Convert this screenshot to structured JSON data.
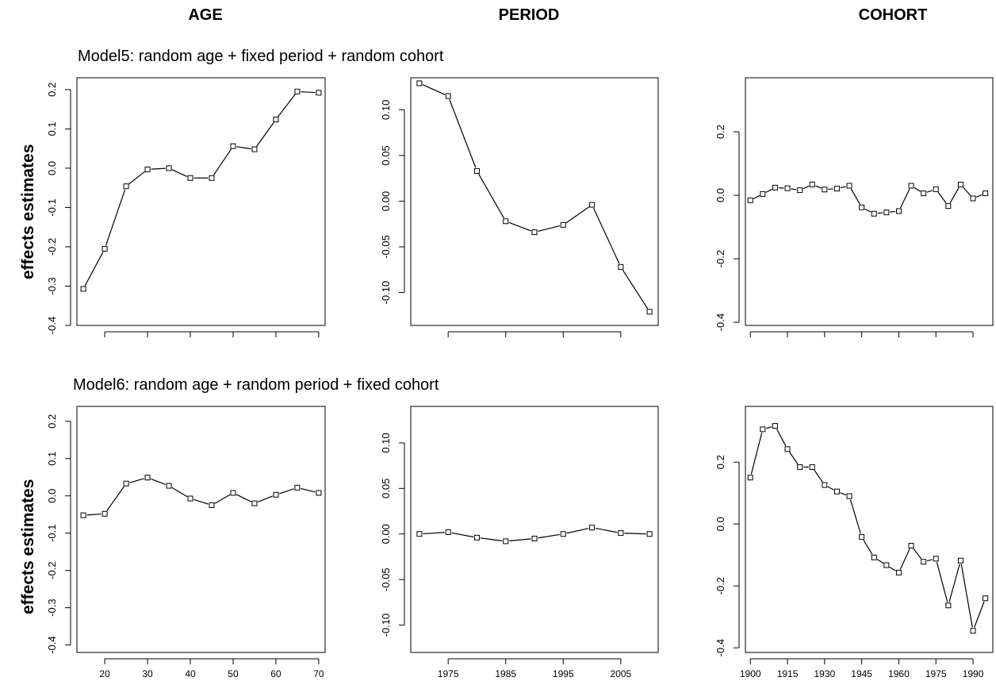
{
  "column_titles": [
    "AGE",
    "PERIOD",
    "COHORT"
  ],
  "rows": [
    {
      "model_label": "Model",
      "model_number": "5",
      "model_desc": ": random age + fixed period + random cohort",
      "ylabel": "effects estimates"
    },
    {
      "model_label": "Model",
      "model_number": "6",
      "model_desc": ": random age + random period + fixed cohort",
      "ylabel": "effects estimates"
    }
  ],
  "chart_data": [
    {
      "type": "line",
      "row": 1,
      "column": "AGE",
      "x": [
        15,
        20,
        25,
        30,
        35,
        40,
        45,
        50,
        55,
        60,
        65,
        70
      ],
      "y": [
        -0.307,
        -0.205,
        -0.046,
        -0.003,
        0.0,
        -0.025,
        -0.025,
        0.056,
        0.048,
        0.124,
        0.195,
        0.192
      ],
      "xlim": [
        13.5,
        71.5
      ],
      "ylim": [
        -0.4,
        0.23
      ],
      "xticks": [
        20,
        30,
        40,
        50,
        60,
        70
      ],
      "xtick_labels": [
        "",
        "",
        "",
        "",
        "",
        ""
      ],
      "yticks": [
        -0.4,
        -0.3,
        -0.2,
        -0.1,
        0.0,
        0.1,
        0.2
      ],
      "ytick_labels": [
        "-0.4",
        "-0.3",
        "-0.2",
        "-0.1",
        "0.0",
        "0.1",
        "0.2"
      ],
      "marker": "open-square",
      "line_color": "#000000"
    },
    {
      "type": "line",
      "row": 1,
      "column": "PERIOD",
      "x": [
        1970,
        1975,
        1980,
        1985,
        1990,
        1995,
        2000,
        2005,
        2010
      ],
      "y": [
        0.129,
        0.115,
        0.033,
        -0.022,
        -0.034,
        -0.026,
        -0.004,
        -0.072,
        -0.121
      ],
      "xlim": [
        1968.5,
        2011.5
      ],
      "ylim": [
        -0.136,
        0.135
      ],
      "xticks": [
        1975,
        1985,
        1995,
        2005
      ],
      "xtick_labels": [
        "",
        "",
        "",
        ""
      ],
      "yticks": [
        -0.1,
        -0.05,
        0.0,
        0.05,
        0.1
      ],
      "ytick_labels": [
        "-0.10",
        "-0.05",
        "0.00",
        "0.05",
        "0.10"
      ],
      "marker": "open-square",
      "line_color": "#000000"
    },
    {
      "type": "line",
      "row": 1,
      "column": "COHORT",
      "x": [
        1900,
        1905,
        1910,
        1915,
        1920,
        1925,
        1930,
        1935,
        1940,
        1945,
        1950,
        1955,
        1960,
        1965,
        1970,
        1975,
        1980,
        1985,
        1990,
        1995
      ],
      "y": [
        -0.016,
        0.004,
        0.024,
        0.022,
        0.016,
        0.034,
        0.018,
        0.021,
        0.03,
        -0.038,
        -0.058,
        -0.054,
        -0.05,
        0.03,
        0.006,
        0.019,
        -0.034,
        0.034,
        -0.01,
        0.006
      ],
      "xlim": [
        1898,
        1998
      ],
      "ylim": [
        -0.41,
        0.37
      ],
      "xticks": [
        1900,
        1915,
        1930,
        1945,
        1960,
        1975,
        1990
      ],
      "xtick_labels": [
        "",
        "",
        "",
        "",
        "",
        "",
        ""
      ],
      "yticks": [
        -0.4,
        -0.2,
        0.0,
        0.2
      ],
      "ytick_labels": [
        "-0.4",
        "-0.2",
        "0.0",
        "0.2"
      ],
      "marker": "open-square",
      "line_color": "#000000"
    },
    {
      "type": "line",
      "row": 2,
      "column": "AGE",
      "x": [
        15,
        20,
        25,
        30,
        35,
        40,
        45,
        50,
        55,
        60,
        65,
        70
      ],
      "y": [
        -0.052,
        -0.048,
        0.033,
        0.049,
        0.027,
        -0.007,
        -0.025,
        0.008,
        -0.02,
        0.003,
        0.022,
        0.008
      ],
      "xlim": [
        13.5,
        71.5
      ],
      "ylim": [
        -0.42,
        0.24
      ],
      "xticks": [
        20,
        30,
        40,
        50,
        60,
        70
      ],
      "xtick_labels": [
        "20",
        "30",
        "40",
        "50",
        "60",
        "70"
      ],
      "yticks": [
        -0.4,
        -0.3,
        -0.2,
        -0.1,
        0.0,
        0.1,
        0.2
      ],
      "ytick_labels": [
        "-0.4",
        "-0.3",
        "-0.2",
        "-0.1",
        "0.0",
        "0.1",
        "0.2"
      ],
      "marker": "open-square",
      "line_color": "#000000"
    },
    {
      "type": "line",
      "row": 2,
      "column": "PERIOD",
      "x": [
        1970,
        1975,
        1980,
        1985,
        1990,
        1995,
        2000,
        2005,
        2010
      ],
      "y": [
        0.0,
        0.002,
        -0.004,
        -0.008,
        -0.005,
        0.0,
        0.007,
        0.001,
        0.0
      ],
      "xlim": [
        1968.5,
        2011.5
      ],
      "ylim": [
        -0.13,
        0.14
      ],
      "xticks": [
        1975,
        1985,
        1995,
        2005
      ],
      "xtick_labels": [
        "1975",
        "1985",
        "1995",
        "2005"
      ],
      "yticks": [
        -0.1,
        -0.05,
        0.0,
        0.05,
        0.1
      ],
      "ytick_labels": [
        "-0.10",
        "-0.05",
        "0.00",
        "0.05",
        "0.10"
      ],
      "marker": "open-square",
      "line_color": "#000000"
    },
    {
      "type": "line",
      "row": 2,
      "column": "COHORT",
      "x": [
        1900,
        1905,
        1910,
        1915,
        1920,
        1925,
        1930,
        1935,
        1940,
        1945,
        1950,
        1955,
        1960,
        1965,
        1970,
        1975,
        1980,
        1985,
        1990,
        1995
      ],
      "y": [
        0.15,
        0.306,
        0.317,
        0.242,
        0.184,
        0.184,
        0.126,
        0.105,
        0.09,
        -0.042,
        -0.108,
        -0.133,
        -0.157,
        -0.07,
        -0.122,
        -0.112,
        -0.263,
        -0.118,
        -0.345,
        -0.24
      ],
      "xlim": [
        1898,
        1998
      ],
      "ylim": [
        -0.415,
        0.38
      ],
      "xticks": [
        1900,
        1915,
        1930,
        1945,
        1960,
        1975,
        1990
      ],
      "xtick_labels": [
        "1900",
        "1915",
        "1930",
        "1945",
        "1960",
        "1975",
        "1990"
      ],
      "yticks": [
        -0.4,
        -0.2,
        0.0,
        0.2
      ],
      "ytick_labels": [
        "-0.4",
        "-0.2",
        "0.0",
        "0.2"
      ],
      "marker": "open-square",
      "line_color": "#000000"
    }
  ]
}
